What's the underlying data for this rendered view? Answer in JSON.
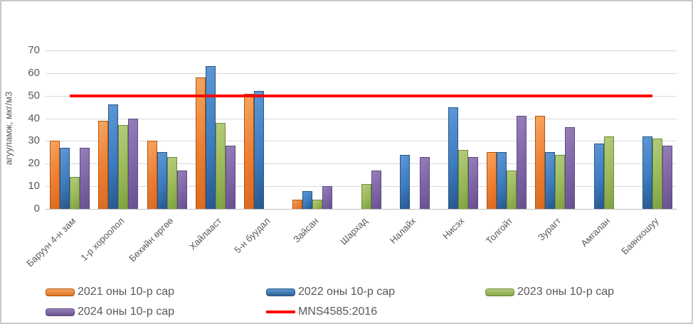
{
  "chart_data": {
    "type": "bar",
    "title": "",
    "xlabel": "",
    "ylabel": "агууламж, мкг/м3",
    "ylim": [
      0,
      70
    ],
    "yticks": [
      0,
      10,
      20,
      30,
      40,
      50,
      60,
      70
    ],
    "grid": true,
    "legend_position": "bottom",
    "categories": [
      "Баруун 4-н зам",
      "1-р хороолол",
      "Бөхийн өргөө",
      "Хайлааст",
      "5-н буудал",
      "Зайсан",
      "Шархад",
      "Налайх",
      "Нисэх",
      "Толгойт",
      "Зурагт",
      "Амгалан",
      "Баянхошуу"
    ],
    "series": [
      {
        "name": "2021 оны 10-р сар",
        "color": "#ED7D31",
        "values": [
          30,
          39,
          30,
          58,
          51,
          4,
          null,
          null,
          null,
          25,
          41,
          null,
          null
        ]
      },
      {
        "name": "2022 оны 10-р сар",
        "color": "#3D7CC0",
        "values": [
          27,
          46,
          25,
          63,
          52,
          8,
          null,
          24,
          45,
          25,
          25,
          29,
          32
        ]
      },
      {
        "name": "2023 оны 10-р сар",
        "color": "#99B859",
        "values": [
          14,
          37,
          23,
          38,
          null,
          4,
          11,
          null,
          26,
          17,
          24,
          32,
          31
        ]
      },
      {
        "name": "2024 оны 10-р сар",
        "color": "#7D63A5",
        "values": [
          27,
          40,
          17,
          28,
          null,
          10,
          17,
          23,
          23,
          41,
          36,
          null,
          28
        ]
      }
    ],
    "ref_line": {
      "name": "MNS4585:2016",
      "value": 50,
      "color": "#FF0000"
    }
  }
}
